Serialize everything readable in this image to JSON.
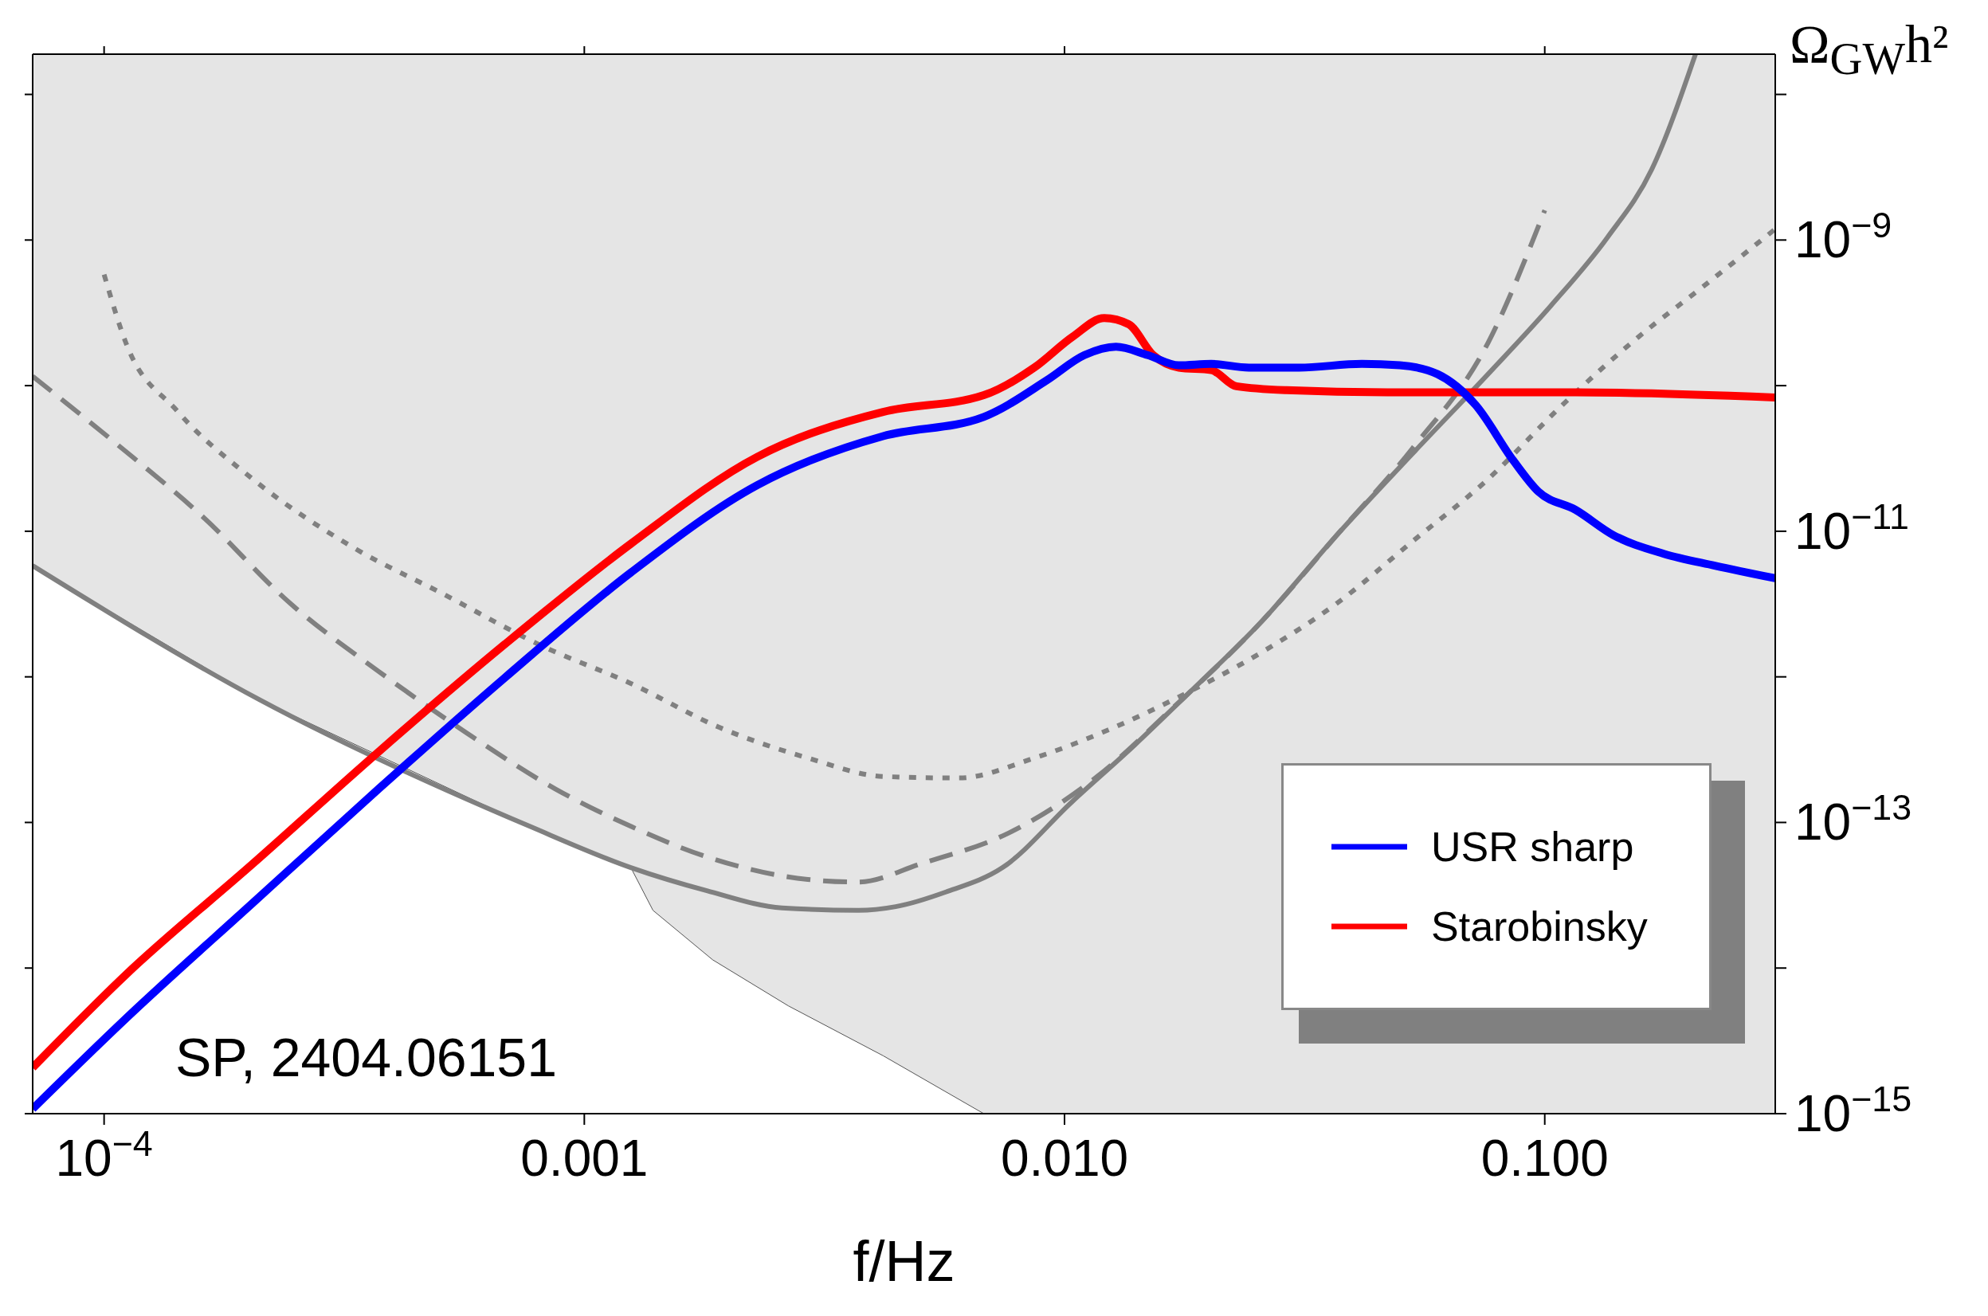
{
  "chart_data": {
    "type": "line",
    "xlabel": "f/Hz",
    "ylabel": "Ω$_{GW}$h²",
    "log": "xy",
    "legend": "bottom right",
    "xlim": [
      7.1e-05,
      0.302
    ],
    "ylim": [
      1e-15,
      1.89e-08
    ],
    "xticks": [
      {
        "value": 0.0001,
        "label": "10$^{−4}$"
      },
      0.001,
      {
        "value": 0.01,
        "label": "0.010"
      },
      {
        "value": 0.1,
        "label": "0.100"
      }
    ],
    "yticks": [
      {
        "value": 1e-15,
        "label": "10$^{−15}$"
      },
      {
        "value": 1e-14,
        "label": null
      },
      {
        "value": 1e-13,
        "label": "10$^{−13}$"
      },
      {
        "value": 1e-12,
        "label": null
      },
      {
        "value": 1e-11,
        "label": "10$^{−11}$"
      },
      {
        "value": 1e-10,
        "label": null
      },
      {
        "value": 1e-09,
        "label": "10$^{−9}$"
      },
      {
        "value": 1e-08,
        "label": null
      }
    ],
    "annotations": [
      "SP, 2404.06151"
    ],
    "series": [
      {
        "type": "area",
        "color": "#ffffff",
        "x": [
          7.1e-05,
          0.00021,
          0.00077,
          0.00125,
          0.00139,
          0.00185,
          0.00266,
          0.00419,
          0.00679,
          0.302
        ],
        "values": [
          5.8e-12,
          7e-13,
          9.4e-14,
          4.9e-14,
          2.49e-14,
          1.14e-14,
          5.5e-15,
          2.5e-15,
          1e-15,
          1e-15
        ]
      },
      {
        "color": "#808080",
        "line_style": "solid",
        "x": [
          7.1e-05,
          0.00021,
          0.00077,
          0.00125,
          0.0018,
          0.00258,
          0.00372,
          0.00445,
          0.00566,
          0.00743,
          0.0104,
          0.014,
          0.0179,
          0.0257,
          0.0369,
          0.053,
          0.0762,
          0.103,
          0.135,
          0.167,
          0.206
        ],
        "values": [
          5.8e-12,
          7e-13,
          9.4e-14,
          4.9e-14,
          3.4e-14,
          2.59e-14,
          2.49e-14,
          2.64e-14,
          3.33e-14,
          4.9e-14,
          1.4e-13,
          3.4e-13,
          7.4e-13,
          2.39e-12,
          9.4e-12,
          3.4e-11,
          1.2e-10,
          3.54e-10,
          1.04e-09,
          3.05e-09,
          1.89e-08
        ]
      },
      {
        "color": "#808080",
        "line_style": "dashed",
        "x": [
          7.1e-05,
          0.000105,
          0.00016,
          0.000244,
          0.000373,
          0.00057,
          0.00087,
          0.00125,
          0.0018,
          0.00292,
          0.00372,
          0.00502,
          0.00767,
          0.0117,
          0.0168,
          0.0257,
          0.0369,
          0.053,
          0.0762,
          0.1
        ],
        "values": [
          1.16e-10,
          4.1e-11,
          1.27e-11,
          3.2e-12,
          1.09e-12,
          4.1e-13,
          1.7e-13,
          9.4e-14,
          5.8e-14,
          4.06e-14,
          3.9e-14,
          5.2e-14,
          8.5e-14,
          2.07e-13,
          6.1e-13,
          2.39e-12,
          9.4e-12,
          3.7e-11,
          1.97e-10,
          1.6e-09
        ]
      },
      {
        "color": "#808080",
        "line_style": "dotted",
        "x": [
          0.0001,
          0.000111,
          0.000142,
          0.000204,
          0.000331,
          0.000505,
          0.00082,
          0.00125,
          0.00191,
          0.00292,
          0.00419,
          0.00602,
          0.00865,
          0.0124,
          0.0179,
          0.0257,
          0.0369,
          0.053,
          0.0762,
          0.109,
          0.157,
          0.213,
          0.302
        ],
        "values": [
          5.8e-10,
          1.97e-10,
          6.7e-11,
          2.28e-11,
          7.7e-12,
          3.75e-12,
          1.62e-12,
          9e-13,
          4.5e-13,
          2.77e-13,
          2.07e-13,
          2.02e-13,
          2.77e-13,
          4.35e-13,
          7.7e-13,
          1.47e-12,
          3.2e-12,
          8.5e-12,
          2.28e-11,
          7.4e-11,
          2.17e-10,
          4.75e-10,
          1.19e-09
        ]
      },
      {
        "name": "Starobinsky",
        "color": "#ff0000",
        "line_style": "solid",
        "x": [
          7.1e-05,
          0.000111,
          0.000204,
          0.000373,
          0.000684,
          0.00125,
          0.00229,
          0.00419,
          0.00679,
          0.00865,
          0.0104,
          0.0121,
          0.0136,
          0.0153,
          0.0173,
          0.0202,
          0.0228,
          0.029,
          0.047,
          0.116,
          0.302
        ],
        "values": [
          2.07e-15,
          9e-15,
          5.2e-14,
          3.06e-13,
          1.68e-12,
          8.2e-12,
          3.24e-11,
          6.6e-11,
          8.6e-11,
          1.33e-10,
          2.17e-10,
          2.91e-10,
          2.64e-10,
          1.62e-10,
          1.33e-10,
          1.28e-10,
          9.9e-11,
          9.3e-11,
          9e-11,
          9e-11,
          8.3e-11
        ]
      },
      {
        "name": "USR sharp",
        "color": "#0000ff",
        "line_style": "solid",
        "x": [
          7.1e-05,
          0.000111,
          0.000204,
          0.000373,
          0.000684,
          0.00125,
          0.00229,
          0.00419,
          0.00679,
          0.00919,
          0.011,
          0.0128,
          0.0149,
          0.0173,
          0.0202,
          0.0242,
          0.0308,
          0.0416,
          0.0499,
          0.0598,
          0.0717,
          0.086,
          0.097,
          0.116,
          0.139,
          0.177,
          0.226,
          0.302
        ],
        "values": [
          1.08e-15,
          4.5e-15,
          2.8e-14,
          1.7e-13,
          9.9e-13,
          5.2e-12,
          2.07e-11,
          4.5e-11,
          6.1e-11,
          1.09e-10,
          1.62e-10,
          1.85e-10,
          1.62e-10,
          1.38e-10,
          1.41e-10,
          1.33e-10,
          1.33e-10,
          1.41e-10,
          1.38e-10,
          1.2e-10,
          7.4e-11,
          3.06e-11,
          1.87e-11,
          1.4e-11,
          9.4e-12,
          7e-12,
          5.8e-12,
          4.75e-12
        ]
      }
    ]
  }
}
